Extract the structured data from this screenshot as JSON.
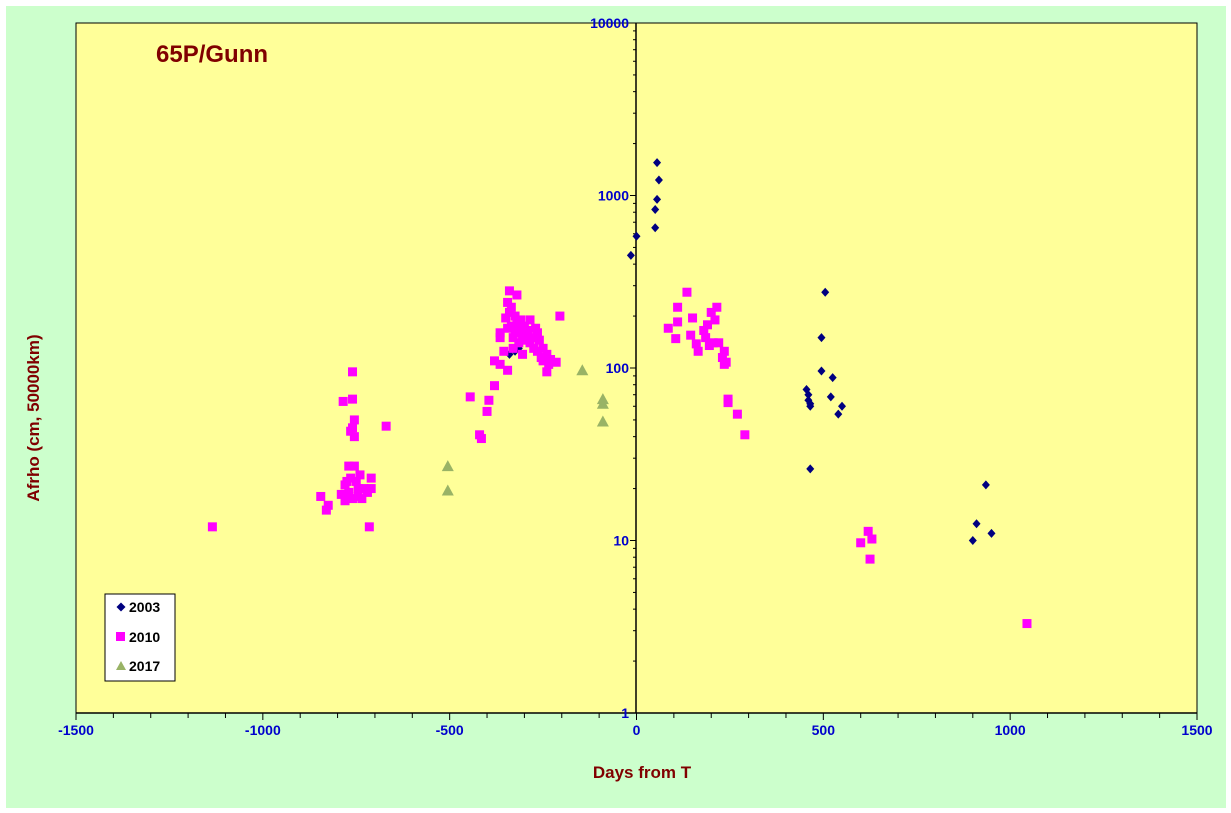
{
  "chart_data": {
    "type": "scatter",
    "title": "65P/Gunn",
    "xlabel": "Days from T",
    "ylabel": "Afrho (cm, 50000km)",
    "xlim": [
      -1500,
      1500
    ],
    "ylim": [
      1,
      10000
    ],
    "yscale": "log",
    "x_ticks": [
      "-1500",
      "-1000",
      "-500",
      "0",
      "500",
      "1000",
      "1500"
    ],
    "y_ticks": [
      "1",
      "10",
      "100",
      "1000",
      "10000"
    ],
    "grid": false,
    "legend_position": "bottom-left",
    "colors": {
      "plot_bg": "#ffff99",
      "chart_bg": "#ccffcc",
      "title": "#800000",
      "axis_label": "#800000",
      "tick_label": "#0000cc"
    },
    "series": [
      {
        "name": "2003",
        "marker": "diamond",
        "color": "#000080",
        "points": [
          [
            -15,
            450
          ],
          [
            0,
            580
          ],
          [
            50,
            650
          ],
          [
            50,
            830
          ],
          [
            55,
            950
          ],
          [
            55,
            1550
          ],
          [
            60,
            1230
          ],
          [
            -340,
            120
          ],
          [
            -325,
            125
          ],
          [
            -315,
            130
          ],
          [
            455,
            75
          ],
          [
            460,
            70
          ],
          [
            460,
            65
          ],
          [
            465,
            62
          ],
          [
            465,
            60
          ],
          [
            465,
            26
          ],
          [
            495,
            150
          ],
          [
            495,
            96
          ],
          [
            505,
            275
          ],
          [
            520,
            68
          ],
          [
            525,
            88
          ],
          [
            540,
            54
          ],
          [
            550,
            60
          ],
          [
            900,
            10
          ],
          [
            910,
            12.5
          ],
          [
            935,
            21
          ],
          [
            950,
            11
          ]
        ]
      },
      {
        "name": "2010",
        "marker": "square",
        "color": "#ff00ff",
        "points": [
          [
            -1135,
            12
          ],
          [
            -845,
            18
          ],
          [
            -830,
            15
          ],
          [
            -825,
            16
          ],
          [
            -790,
            18.5
          ],
          [
            -785,
            64
          ],
          [
            -780,
            17
          ],
          [
            -780,
            21
          ],
          [
            -775,
            22
          ],
          [
            -770,
            19
          ],
          [
            -770,
            27
          ],
          [
            -765,
            23
          ],
          [
            -765,
            43
          ],
          [
            -760,
            17.5
          ],
          [
            -760,
            45
          ],
          [
            -760,
            66
          ],
          [
            -760,
            95
          ],
          [
            -755,
            40
          ],
          [
            -755,
            50
          ],
          [
            -755,
            27
          ],
          [
            -750,
            22
          ],
          [
            -745,
            20
          ],
          [
            -745,
            18
          ],
          [
            -740,
            24
          ],
          [
            -735,
            17.5
          ],
          [
            -730,
            20
          ],
          [
            -720,
            19
          ],
          [
            -715,
            12
          ],
          [
            -710,
            20
          ],
          [
            -710,
            23
          ],
          [
            -670,
            46
          ],
          [
            -445,
            68
          ],
          [
            -420,
            41
          ],
          [
            -415,
            39
          ],
          [
            -400,
            56
          ],
          [
            -395,
            65
          ],
          [
            -380,
            79
          ],
          [
            -380,
            110
          ],
          [
            -365,
            105
          ],
          [
            -365,
            150
          ],
          [
            -365,
            160
          ],
          [
            -355,
            125
          ],
          [
            -350,
            195
          ],
          [
            -345,
            170
          ],
          [
            -345,
            240
          ],
          [
            -345,
            97
          ],
          [
            -340,
            280
          ],
          [
            -340,
            210
          ],
          [
            -335,
            225
          ],
          [
            -335,
            175
          ],
          [
            -330,
            150
          ],
          [
            -330,
            130
          ],
          [
            -325,
            165
          ],
          [
            -325,
            200
          ],
          [
            -320,
            265
          ],
          [
            -320,
            185
          ],
          [
            -315,
            140
          ],
          [
            -315,
            160
          ],
          [
            -310,
            170
          ],
          [
            -310,
            190
          ],
          [
            -305,
            120
          ],
          [
            -305,
            155
          ],
          [
            -300,
            145
          ],
          [
            -300,
            175
          ],
          [
            -295,
            160
          ],
          [
            -290,
            165
          ],
          [
            -285,
            140
          ],
          [
            -285,
            190
          ],
          [
            -280,
            150
          ],
          [
            -275,
            130
          ],
          [
            -270,
            170
          ],
          [
            -265,
            125
          ],
          [
            -265,
            160
          ],
          [
            -260,
            145
          ],
          [
            -255,
            115
          ],
          [
            -250,
            130
          ],
          [
            -250,
            110
          ],
          [
            -240,
            120
          ],
          [
            -240,
            95
          ],
          [
            -235,
            105
          ],
          [
            -230,
            112
          ],
          [
            -215,
            108
          ],
          [
            -205,
            200
          ],
          [
            85,
            170
          ],
          [
            105,
            148
          ],
          [
            110,
            185
          ],
          [
            110,
            225
          ],
          [
            135,
            275
          ],
          [
            145,
            155
          ],
          [
            150,
            195
          ],
          [
            160,
            138
          ],
          [
            165,
            125
          ],
          [
            180,
            165
          ],
          [
            185,
            150
          ],
          [
            190,
            178
          ],
          [
            195,
            135
          ],
          [
            200,
            210
          ],
          [
            205,
            140
          ],
          [
            210,
            190
          ],
          [
            215,
            225
          ],
          [
            220,
            140
          ],
          [
            230,
            115
          ],
          [
            235,
            125
          ],
          [
            235,
            105
          ],
          [
            240,
            108
          ],
          [
            245,
            66
          ],
          [
            245,
            63
          ],
          [
            270,
            54
          ],
          [
            290,
            41
          ],
          [
            600,
            9.7
          ],
          [
            620,
            11.3
          ],
          [
            625,
            7.8
          ],
          [
            630,
            10.2
          ],
          [
            1045,
            3.3
          ]
        ]
      },
      {
        "name": "2017",
        "marker": "triangle",
        "color": "#99b366",
        "points": [
          [
            -505,
            27
          ],
          [
            -505,
            19.5
          ],
          [
            -145,
            97
          ],
          [
            -90,
            62
          ],
          [
            -90,
            66
          ],
          [
            -90,
            49
          ]
        ]
      }
    ]
  }
}
